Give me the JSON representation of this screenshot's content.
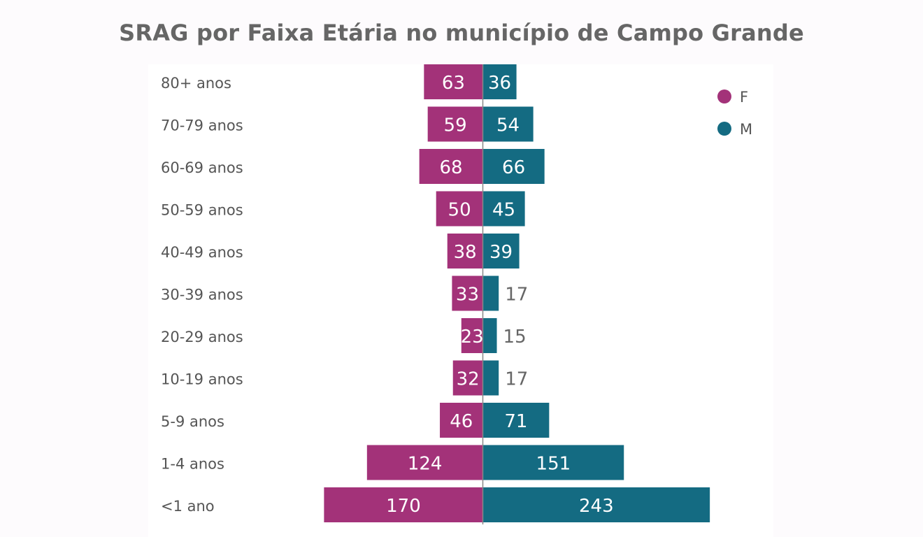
{
  "chart_data": {
    "type": "bar",
    "orientation": "horizontal-diverging",
    "title": "SRAG por Faixa Etária no município de Campo Grande",
    "categories": [
      "80+ anos",
      "70-79 anos",
      "60-69 anos",
      "50-59 anos",
      "40-49 anos",
      "30-39 anos",
      "20-29 anos",
      "10-19 anos",
      "5-9 anos",
      "1-4 anos",
      "<1 ano"
    ],
    "series": [
      {
        "name": "F",
        "color": "#a33279",
        "values": [
          63,
          59,
          68,
          50,
          38,
          33,
          23,
          32,
          46,
          124,
          170
        ]
      },
      {
        "name": "M",
        "color": "#146b82",
        "values": [
          36,
          54,
          66,
          45,
          39,
          17,
          15,
          17,
          71,
          151,
          243
        ]
      }
    ],
    "xlim": [
      -170,
      243
    ],
    "legend": {
      "position": "top-right",
      "entries": [
        "F",
        "M"
      ]
    },
    "grid": false,
    "center_line_color": "#888888"
  }
}
